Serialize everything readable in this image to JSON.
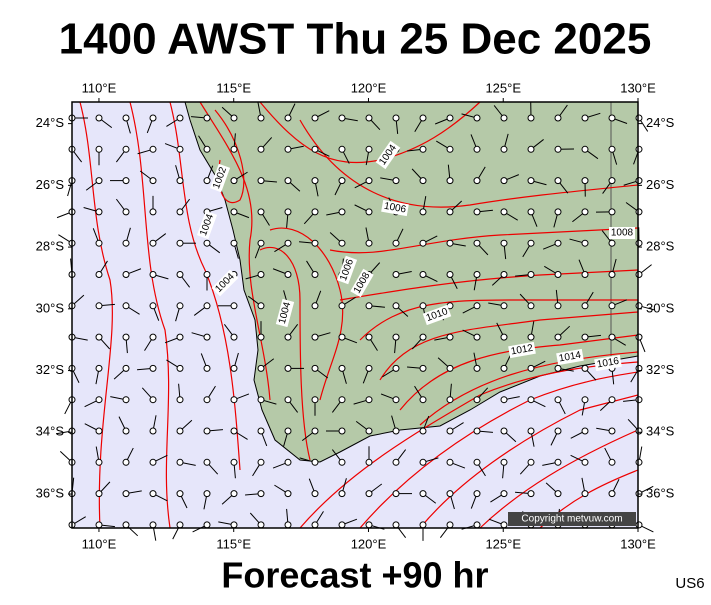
{
  "header": {
    "title": "1400 AWST Thu 25 Dec 2025"
  },
  "map": {
    "xlim": [
      109,
      130
    ],
    "ylim": [
      23.3,
      37.1
    ],
    "xticks": [
      {
        "value": 110,
        "label": "110°E"
      },
      {
        "value": 115,
        "label": "115°E"
      },
      {
        "value": 120,
        "label": "120°E"
      },
      {
        "value": 125,
        "label": "125°E"
      },
      {
        "value": 130,
        "label": "130°E"
      }
    ],
    "yticks": [
      {
        "value": 24,
        "label": "24°S"
      },
      {
        "value": 26,
        "label": "26°S"
      },
      {
        "value": 28,
        "label": "28°S"
      },
      {
        "value": 30,
        "label": "30°S"
      },
      {
        "value": 32,
        "label": "32°S"
      },
      {
        "value": 34,
        "label": "34°S"
      },
      {
        "value": 36,
        "label": "36°S"
      }
    ],
    "isobar_labels": [
      1004,
      1002,
      1006,
      1004,
      1008,
      1006,
      1008,
      1004,
      1004,
      1010,
      1012,
      1014,
      1016
    ],
    "copyright": "Copyright metvuw.com"
  },
  "footer": {
    "forecast": "Forecast +90 hr",
    "code": "US6"
  }
}
